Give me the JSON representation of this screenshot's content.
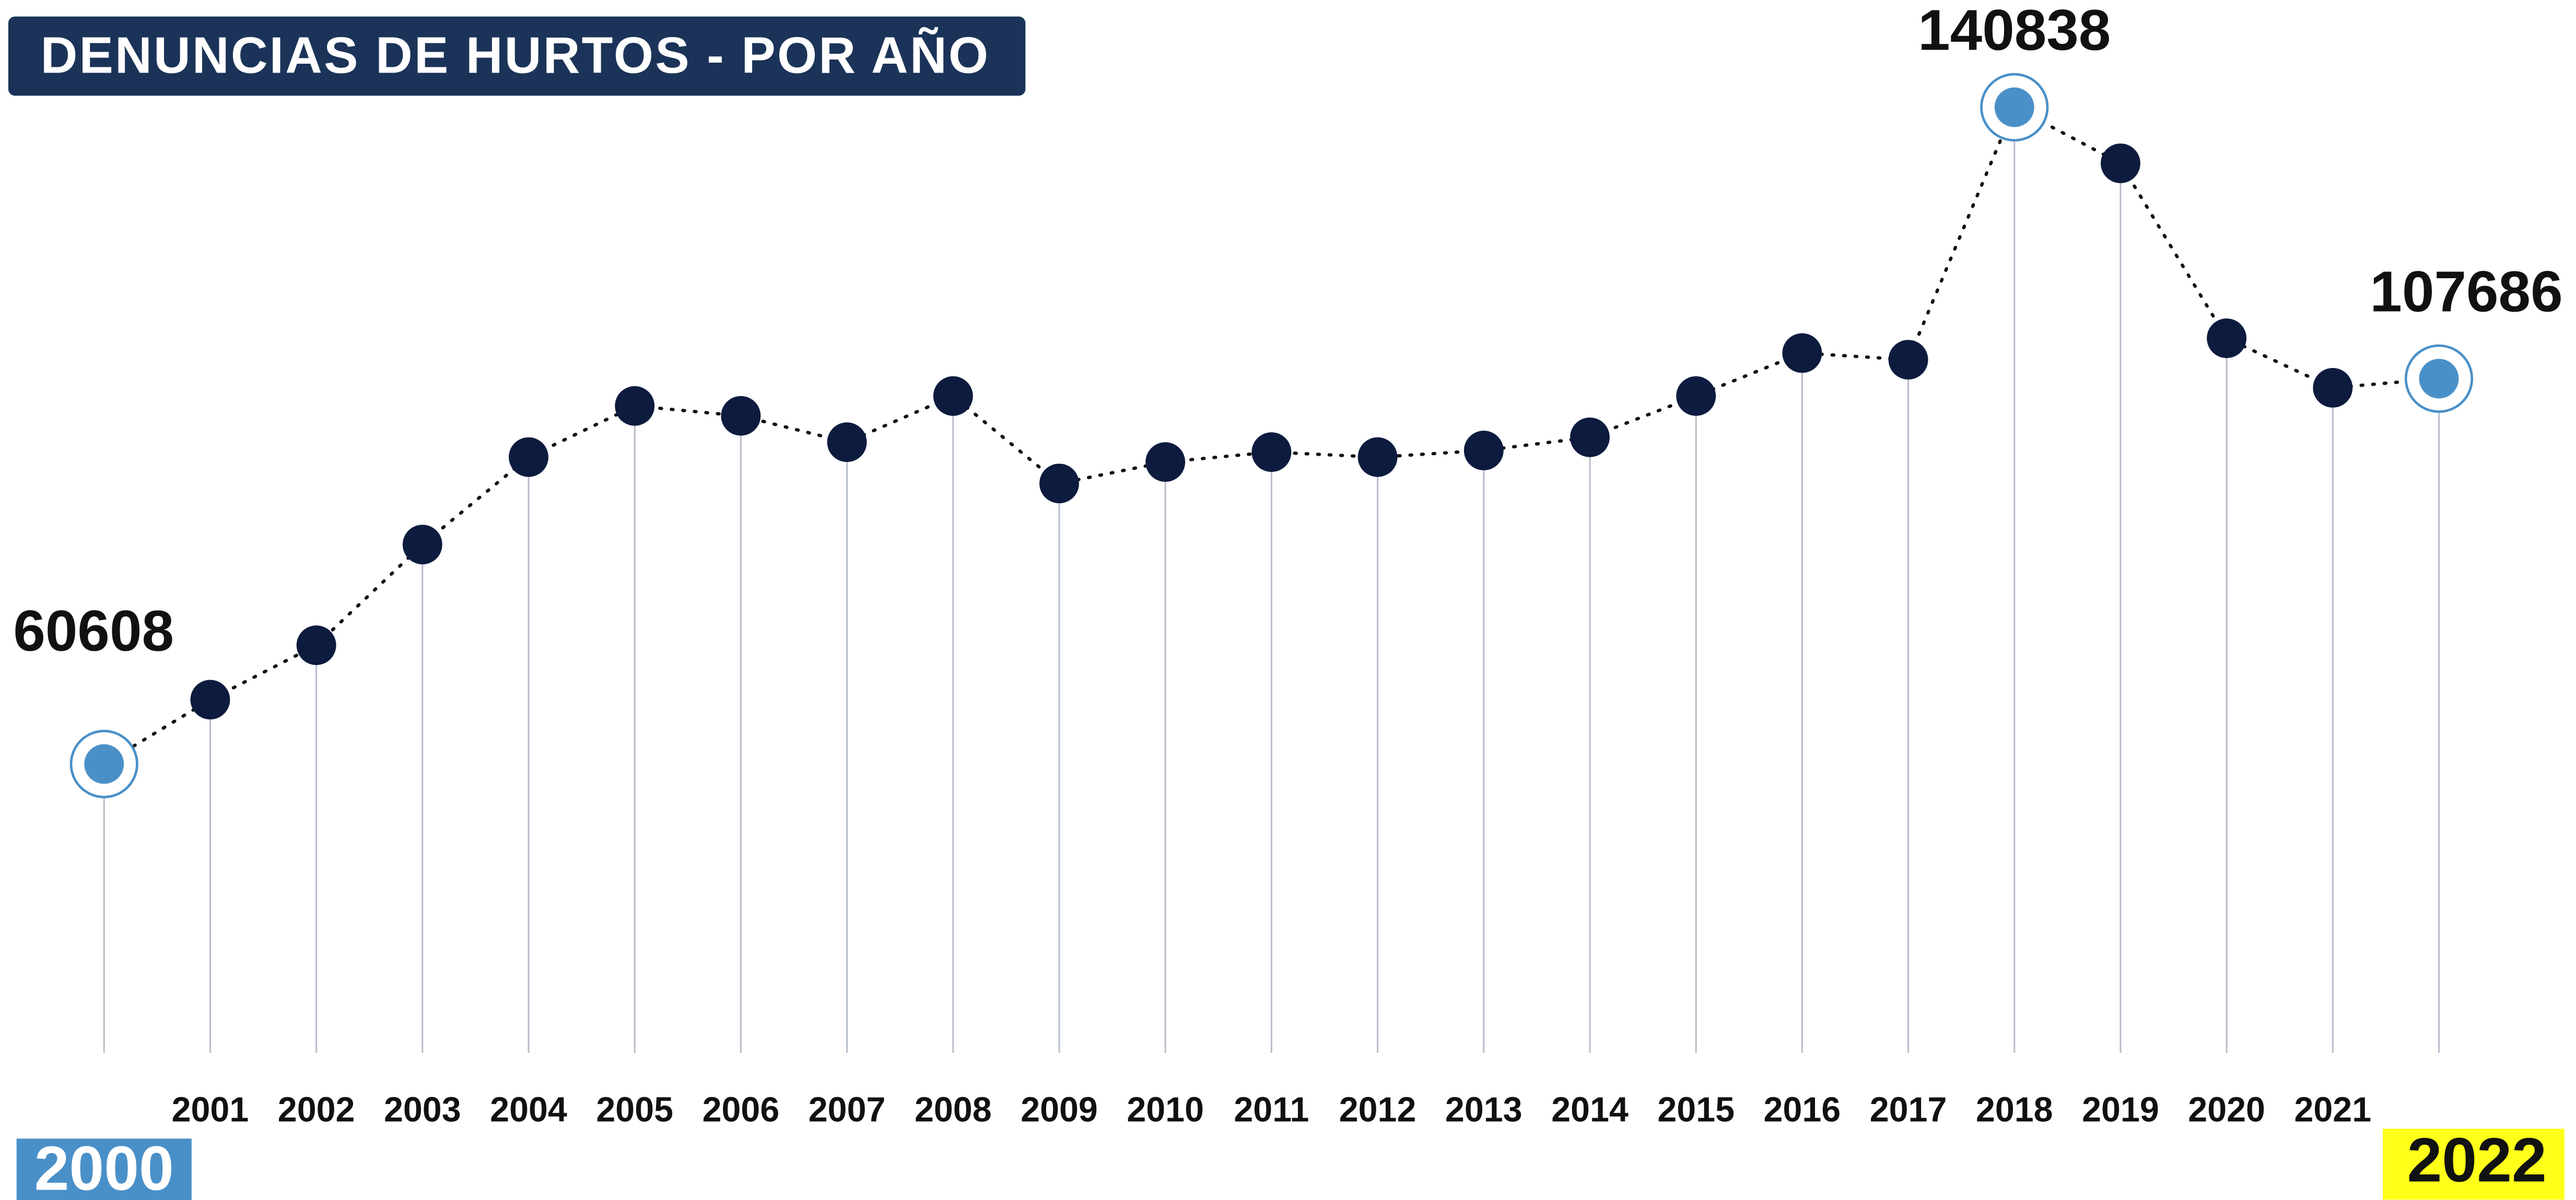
{
  "chart_data": {
    "type": "line",
    "title": "DENUNCIAS DE HURTOS - POR AÑO",
    "categories": [
      "2000",
      "2001",
      "2002",
      "2003",
      "2004",
      "2005",
      "2006",
      "2007",
      "2008",
      "2009",
      "2010",
      "2011",
      "2012",
      "2013",
      "2014",
      "2015",
      "2016",
      "2017",
      "2018",
      "2019",
      "2020",
      "2021",
      "2022"
    ],
    "values": [
      60608,
      68470,
      75120,
      87420,
      98100,
      104350,
      103140,
      99920,
      105560,
      94880,
      97500,
      98710,
      98100,
      98910,
      100520,
      105560,
      110810,
      110000,
      140838,
      133990,
      112620,
      106570,
      107686
    ],
    "color": "#0d1b3e",
    "highlight_color": "#4a90c8"
  }
}
